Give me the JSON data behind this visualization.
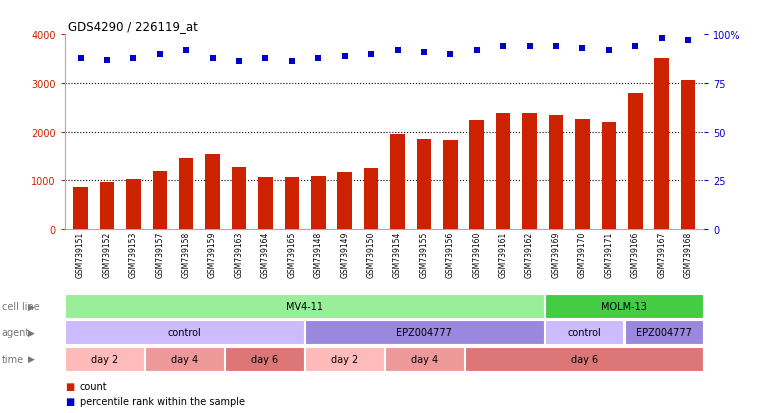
{
  "title": "GDS4290 / 226119_at",
  "samples": [
    "GSM739151",
    "GSM739152",
    "GSM739153",
    "GSM739157",
    "GSM739158",
    "GSM739159",
    "GSM739163",
    "GSM739164",
    "GSM739165",
    "GSM739148",
    "GSM739149",
    "GSM739150",
    "GSM739154",
    "GSM739155",
    "GSM739156",
    "GSM739160",
    "GSM739161",
    "GSM739162",
    "GSM739169",
    "GSM739170",
    "GSM739171",
    "GSM739166",
    "GSM739167",
    "GSM739168"
  ],
  "counts": [
    870,
    960,
    1020,
    1190,
    1470,
    1550,
    1270,
    1070,
    1080,
    1100,
    1170,
    1260,
    1950,
    1840,
    1820,
    2230,
    2380,
    2380,
    2340,
    2260,
    2190,
    2800,
    3510,
    3060
  ],
  "percentile": [
    88,
    87,
    88,
    90,
    92,
    88,
    86,
    88,
    86,
    88,
    89,
    90,
    92,
    91,
    90,
    92,
    94,
    94,
    94,
    93,
    92,
    94,
    98,
    97
  ],
  "bar_color": "#cc2200",
  "dot_color": "#0000cc",
  "ylim_left": [
    0,
    4000
  ],
  "ylim_right": [
    0,
    100
  ],
  "yticks_left": [
    0,
    1000,
    2000,
    3000,
    4000
  ],
  "yticks_right": [
    0,
    25,
    50,
    75,
    100
  ],
  "grid_dotted_at": [
    1000,
    2000,
    3000
  ],
  "background_color": "#ffffff",
  "cell_line_groups": [
    {
      "label": "MV4-11",
      "start": 0,
      "end": 18,
      "color": "#99ee99"
    },
    {
      "label": "MOLM-13",
      "start": 18,
      "end": 24,
      "color": "#44cc44"
    }
  ],
  "agent_groups": [
    {
      "label": "control",
      "start": 0,
      "end": 9,
      "color": "#ccbbff"
    },
    {
      "label": "EPZ004777",
      "start": 9,
      "end": 18,
      "color": "#9988dd"
    },
    {
      "label": "control",
      "start": 18,
      "end": 21,
      "color": "#ccbbff"
    },
    {
      "label": "EPZ004777",
      "start": 21,
      "end": 24,
      "color": "#9988dd"
    }
  ],
  "time_groups": [
    {
      "label": "day 2",
      "start": 0,
      "end": 3,
      "color": "#ffbbbb"
    },
    {
      "label": "day 4",
      "start": 3,
      "end": 6,
      "color": "#ee9999"
    },
    {
      "label": "day 6",
      "start": 6,
      "end": 9,
      "color": "#dd7777"
    },
    {
      "label": "day 2",
      "start": 9,
      "end": 12,
      "color": "#ffbbbb"
    },
    {
      "label": "day 4",
      "start": 12,
      "end": 15,
      "color": "#ee9999"
    },
    {
      "label": "day 6",
      "start": 15,
      "end": 24,
      "color": "#dd7777"
    }
  ],
  "row_labels": [
    "cell line",
    "agent",
    "time"
  ],
  "legend_count_color": "#cc2200",
  "legend_dot_color": "#0000cc",
  "bar_width": 0.55,
  "dot_size": 25,
  "n_samples": 24
}
